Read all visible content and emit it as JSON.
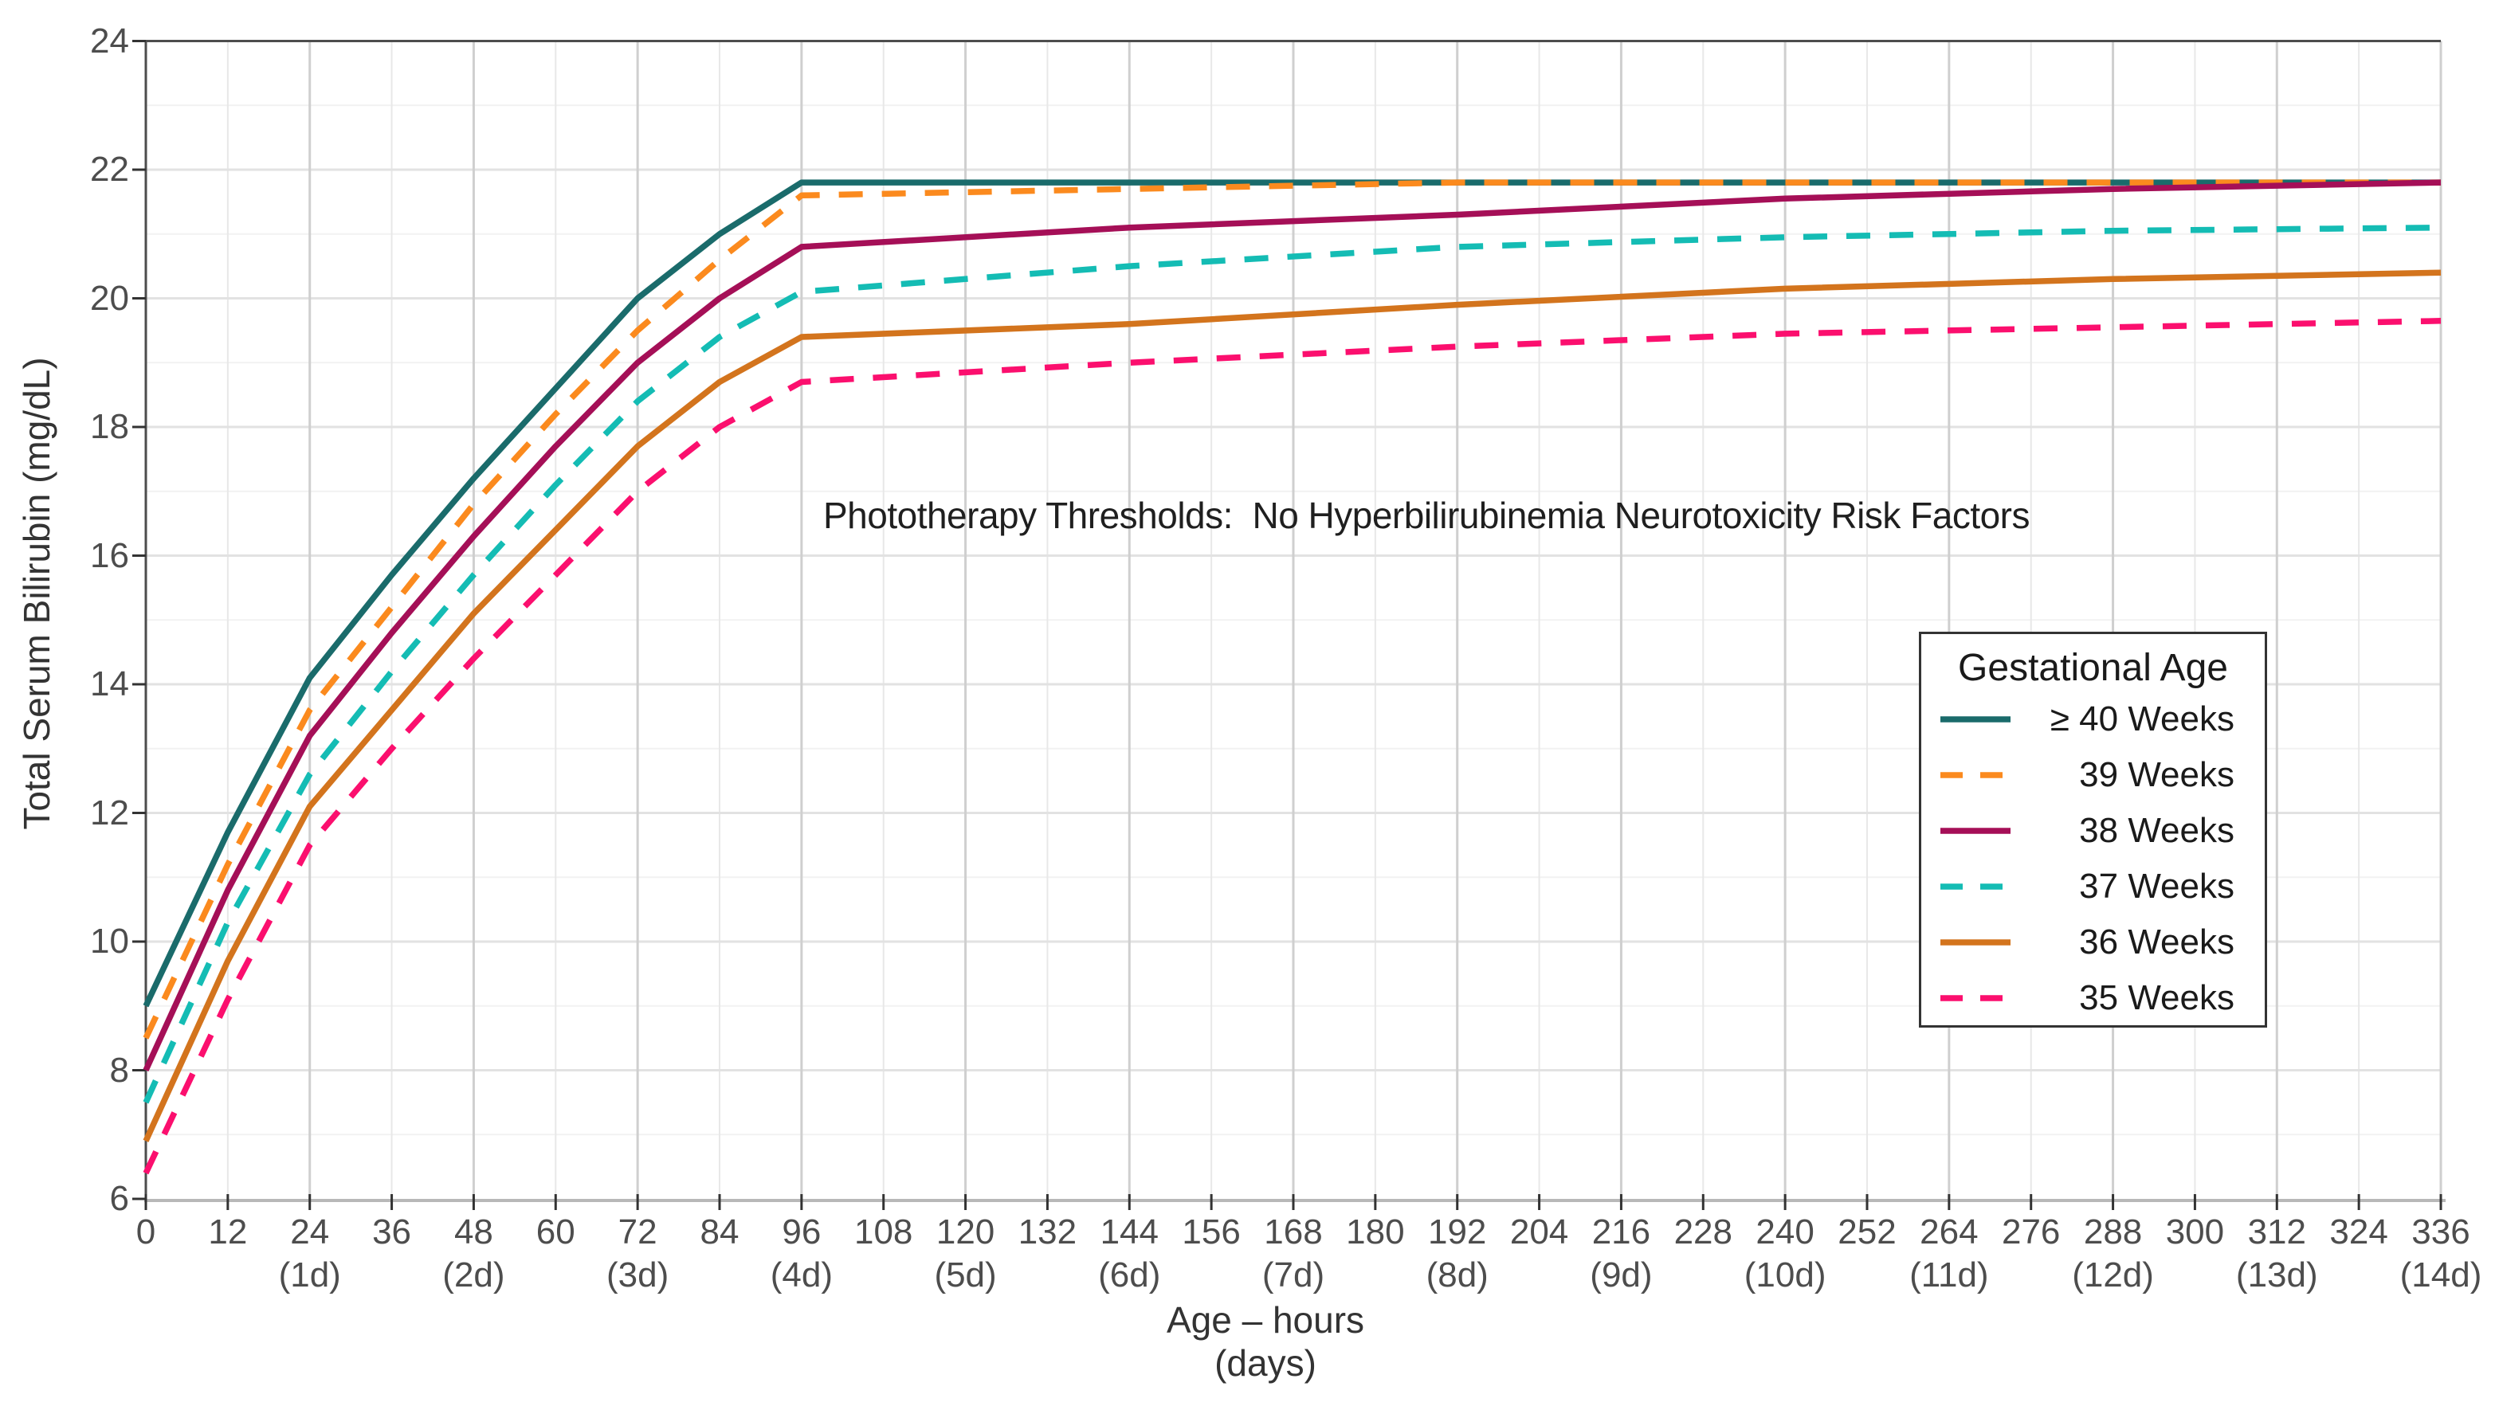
{
  "chart_data": {
    "type": "line",
    "title": "Phototherapy Thresholds:  No Hyperbilirubinemia Neurotoxicity Risk Factors",
    "xlabel": "Age – hours",
    "xlabel2": "(days)",
    "ylabel": "Total Serum Bilirubin (mg/dL)",
    "xlim": [
      0,
      336
    ],
    "ylim": [
      6,
      24
    ],
    "x_tick_step_hours": 12,
    "x_tick_labels": [
      0,
      12,
      24,
      36,
      48,
      60,
      72,
      84,
      96,
      108,
      120,
      132,
      144,
      156,
      168,
      180,
      192,
      204,
      216,
      228,
      240,
      252,
      264,
      276,
      288,
      300,
      312,
      324,
      336
    ],
    "day_tick_hours": [
      24,
      48,
      72,
      96,
      120,
      144,
      168,
      192,
      216,
      240,
      264,
      288,
      312,
      336
    ],
    "day_tick_labels": [
      "(1d)",
      "(2d)",
      "(3d)",
      "(4d)",
      "(5d)",
      "(6d)",
      "(7d)",
      "(8d)",
      "(9d)",
      "(10d)",
      "(11d)",
      "(12d)",
      "(13d)",
      "(14d)"
    ],
    "y_tick_labels": [
      6,
      8,
      10,
      12,
      14,
      16,
      18,
      20,
      22,
      24
    ],
    "grid": {
      "v_major_every_hours": 24,
      "v_minor_every_hours": 12,
      "h_major_every": 2,
      "h_minor_every": 1
    },
    "legend": {
      "title": "Gestational Age",
      "position": "inside-right"
    },
    "x": [
      0,
      12,
      24,
      36,
      48,
      60,
      72,
      84,
      96,
      144,
      192,
      240,
      288,
      336
    ],
    "series": [
      {
        "name": "≥ 40 Weeks",
        "gestational_age_weeks": "≥40",
        "color": "#1a6b6b",
        "dash": "solid",
        "values": [
          9.0,
          11.7,
          14.1,
          15.7,
          17.2,
          18.6,
          20.0,
          21.0,
          21.8,
          21.8,
          21.8,
          21.8,
          21.8,
          21.8
        ]
      },
      {
        "name": "39 Weeks",
        "gestational_age_weeks": "39",
        "color": "#fb8a1e",
        "dash": "dashed",
        "values": [
          8.5,
          11.2,
          13.6,
          15.2,
          16.8,
          18.2,
          19.5,
          20.6,
          21.6,
          21.7,
          21.8,
          21.8,
          21.8,
          21.8
        ]
      },
      {
        "name": "38 Weeks",
        "gestational_age_weeks": "38",
        "color": "#a50f57",
        "dash": "solid",
        "values": [
          8.0,
          10.8,
          13.2,
          14.8,
          16.3,
          17.7,
          19.0,
          20.0,
          20.8,
          21.1,
          21.3,
          21.55,
          21.7,
          21.8
        ]
      },
      {
        "name": "37 Weeks",
        "gestational_age_weeks": "37",
        "color": "#14bcb4",
        "dash": "dashed",
        "values": [
          7.5,
          10.3,
          12.6,
          14.2,
          15.7,
          17.1,
          18.4,
          19.4,
          20.1,
          20.5,
          20.8,
          20.95,
          21.05,
          21.1
        ]
      },
      {
        "name": "36 Weeks",
        "gestational_age_weeks": "36",
        "color": "#d3741d",
        "dash": "solid",
        "values": [
          6.9,
          9.7,
          12.1,
          13.6,
          15.1,
          16.4,
          17.7,
          18.7,
          19.4,
          19.6,
          19.9,
          20.15,
          20.3,
          20.4
        ]
      },
      {
        "name": "35 Weeks",
        "gestational_age_weeks": "35",
        "color": "#fb0f6e",
        "dash": "dashed",
        "values": [
          6.4,
          9.1,
          11.5,
          13.0,
          14.4,
          15.7,
          17.0,
          18.0,
          18.7,
          19.0,
          19.25,
          19.45,
          19.55,
          19.65
        ]
      }
    ],
    "colors": {
      "axis_dark": "#4d4d4d",
      "axis_bottom": "#b8b8b8",
      "tick_stub": "#333333",
      "grid_major_v": "#cfcfcf",
      "grid_minor_v": "#e8e8e8",
      "grid_major_h": "#e2e2e2",
      "grid_minor_h": "#f2f2f2"
    }
  }
}
